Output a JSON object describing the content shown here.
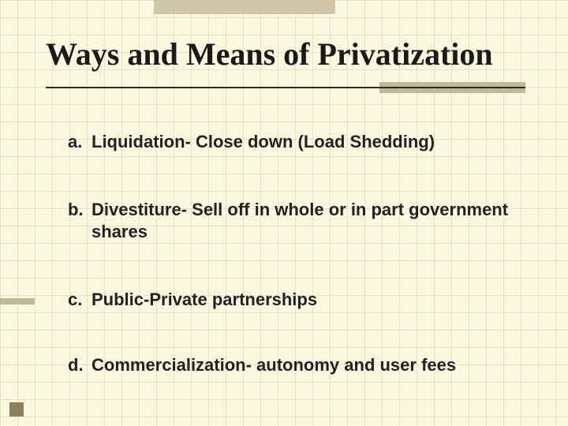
{
  "background_color": "#fbf8e0",
  "grid_color": "rgba(160,150,100,0.22)",
  "accent_color": "#bfb998",
  "text_color": "#222222",
  "title": "Ways and Means of Privatization",
  "title_font": "Times New Roman",
  "title_fontsize": 40,
  "body_fontsize": 22,
  "items": [
    {
      "marker": "a.",
      "text": "Liquidation- Close down (Load Shedding)"
    },
    {
      "marker": "b.",
      "text": "Divestiture- Sell off in whole or in part government shares"
    },
    {
      "marker": "c.",
      "text": "Public-Private partnerships"
    },
    {
      "marker": "d.",
      "text": "Commercialization- autonomy and user fees"
    }
  ]
}
